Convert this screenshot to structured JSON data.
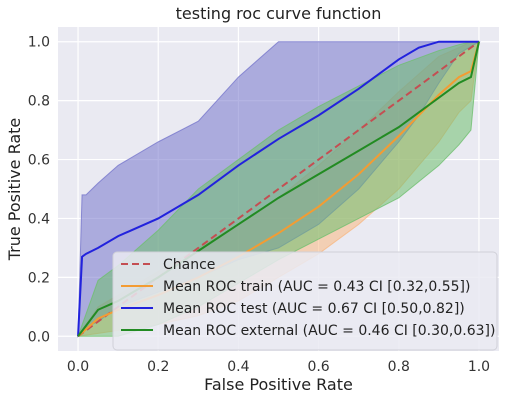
{
  "chart_data": {
    "type": "line",
    "title": "testing roc curve function",
    "xlabel": "False Positive Rate",
    "ylabel": "True Positive Rate",
    "xlim": [
      -0.05,
      1.05
    ],
    "ylim": [
      -0.05,
      1.05
    ],
    "xticks": [
      "0.0",
      "0.2",
      "0.4",
      "0.6",
      "0.8",
      "1.0"
    ],
    "yticks": [
      "0.0",
      "0.2",
      "0.4",
      "0.6",
      "0.8",
      "1.0"
    ],
    "grid": true,
    "legend_position": "lower-right",
    "series": [
      {
        "name": "Chance",
        "color": "#c44e52",
        "style": "dashed",
        "x": [
          0,
          1
        ],
        "y": [
          0,
          1
        ]
      },
      {
        "name": "Mean ROC train (AUC = 0.43 CI [0.32,0.55])",
        "color": "#f39c33",
        "band_color": "#f7b882",
        "x": [
          0,
          0.05,
          0.1,
          0.2,
          0.3,
          0.4,
          0.5,
          0.6,
          0.7,
          0.8,
          0.9,
          0.95,
          0.98,
          1.0
        ],
        "y": [
          0,
          0.06,
          0.09,
          0.14,
          0.2,
          0.27,
          0.35,
          0.44,
          0.55,
          0.68,
          0.82,
          0.88,
          0.9,
          1.0
        ],
        "lower": [
          0,
          0.01,
          0.02,
          0.04,
          0.07,
          0.12,
          0.2,
          0.28,
          0.38,
          0.5,
          0.66,
          0.76,
          0.8,
          1.0
        ],
        "upper": [
          0,
          0.1,
          0.14,
          0.22,
          0.3,
          0.38,
          0.47,
          0.58,
          0.7,
          0.83,
          0.95,
          0.98,
          1.0,
          1.0
        ]
      },
      {
        "name": "Mean ROC test (AUC = 0.67 CI [0.50,0.82])",
        "color": "#2222dd",
        "band_color": "#7777cc",
        "x": [
          0,
          0.01,
          0.02,
          0.05,
          0.1,
          0.2,
          0.3,
          0.4,
          0.5,
          0.6,
          0.7,
          0.8,
          0.85,
          0.9,
          0.95,
          1.0
        ],
        "y": [
          0,
          0.27,
          0.28,
          0.3,
          0.34,
          0.4,
          0.48,
          0.58,
          0.67,
          0.75,
          0.84,
          0.94,
          0.98,
          1.0,
          1.0,
          1.0
        ],
        "lower": [
          0,
          0.02,
          0.03,
          0.05,
          0.1,
          0.15,
          0.2,
          0.26,
          0.3,
          0.38,
          0.5,
          0.66,
          0.75,
          0.86,
          0.96,
          1.0
        ],
        "upper": [
          0,
          0.48,
          0.48,
          0.52,
          0.58,
          0.66,
          0.73,
          0.88,
          1.0,
          1.0,
          1.0,
          1.0,
          1.0,
          1.0,
          1.0,
          1.0
        ]
      },
      {
        "name": "Mean ROC external (AUC = 0.46 CI [0.30,0.63])",
        "color": "#228b22",
        "band_color": "#6fbf6f",
        "x": [
          0,
          0.05,
          0.1,
          0.2,
          0.3,
          0.4,
          0.5,
          0.6,
          0.7,
          0.8,
          0.9,
          0.95,
          0.98,
          1.0
        ],
        "y": [
          0,
          0.09,
          0.12,
          0.2,
          0.29,
          0.38,
          0.47,
          0.55,
          0.63,
          0.71,
          0.81,
          0.86,
          0.88,
          1.0
        ],
        "lower": [
          0,
          0.0,
          0.0,
          0.04,
          0.1,
          0.18,
          0.26,
          0.33,
          0.4,
          0.47,
          0.58,
          0.65,
          0.7,
          1.0
        ],
        "upper": [
          0,
          0.19,
          0.24,
          0.36,
          0.5,
          0.6,
          0.7,
          0.78,
          0.85,
          0.92,
          0.97,
          0.99,
          1.0,
          1.0
        ]
      }
    ]
  }
}
